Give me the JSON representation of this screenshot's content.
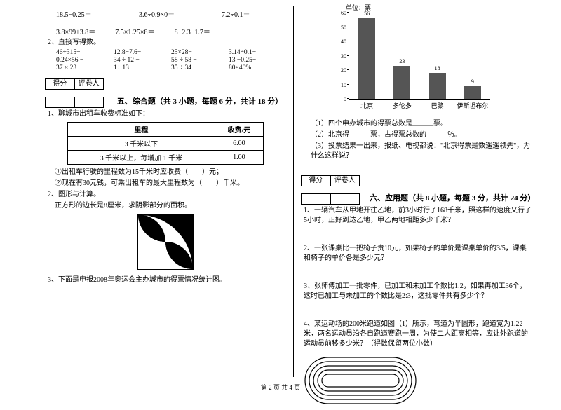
{
  "arithmetic_block1": {
    "r1": [
      "18.5−0.25＝",
      "3.6÷0.9×0＝",
      "7.2÷0.1＝"
    ],
    "r2": [
      "3.8×99+3.8＝",
      "7.5×1.25×8＝",
      "8−2.3−1.7＝"
    ]
  },
  "direct_label": "2、直接写得数。",
  "arithmetic_block2": {
    "r1": [
      "46+315−",
      "12.8−7.6−",
      "25×28−",
      "3.14÷0.1−"
    ],
    "r2": [
      "0.24×56 −",
      "34 ÷ 12 −",
      "58 ÷ 58 −",
      "13 −0.25−"
    ],
    "r3": [
      "37 × 23 −",
      "1÷ 13 −",
      "35 ÷ 34 −",
      "80×40%−"
    ]
  },
  "score_header": {
    "a": "得分",
    "b": "评卷人"
  },
  "section5": {
    "title": "五、综合题（共 3 小题，每题 6 分，共计 18 分）",
    "q1": {
      "stem": "1、聊城市出租车收费标准如下：",
      "table": {
        "headers": [
          "里程",
          "收费/元"
        ],
        "rows": [
          [
            "3 千米以下",
            "6.00"
          ],
          [
            "3 千米以上，每增加 1 千米",
            "1.00"
          ]
        ]
      },
      "sub1": "①出租车行驶的里程数为15千米时应收费（　　）元；",
      "sub2": "②现在有30元钱，可乘出租车的最大里程数为（　　）千米。"
    },
    "q2": {
      "stem": "2、图形与计算。",
      "line": "正方形的边长是8厘米，求阴影部分的面积。"
    },
    "q3": {
      "stem": "3、下面是申报2008年奥运会主办城市的得票情况统计图。"
    }
  },
  "chart": {
    "unit_label": "单位：票",
    "y_max": 60,
    "y_step": 10,
    "background_color": "#ffffff",
    "bar_color": "#555555",
    "font_size": 9,
    "categories": [
      "北京",
      "多伦多",
      "巴黎",
      "伊斯坦布尔"
    ],
    "values": [
      56,
      23,
      18,
      9
    ]
  },
  "chart_questions": {
    "a": "（1）四个申办城市的得票总数是＿＿＿票。",
    "b": "（2）北京得＿＿＿票，占得票总数的＿＿＿％。",
    "c": "（3）投票结果一出来，报纸、电视都说：\"北京得票是数遥遥领先\"，为什么这样说？"
  },
  "section6": {
    "title": "六、应用题（共 8 小题，每题 3 分，共计 24 分）",
    "q1": "1、一辆汽车从甲地开往乙地，前3小时行了168千米，照这样的速度又行了5小时，正好到达乙地，甲乙两地相距多少千米？",
    "q2": "2、一张课桌比一把椅子贵10元，如果椅子的单价是课桌单价的3/5，课桌和椅子的单价各是多少元？",
    "q3": "3、张师傅加工一批零件，已加工和未加工个数比1:2，如果再加工36个，这时已加工与未加工的个数比是2:3，这批零件共有多少个？",
    "q4": "4、某运动场的200米跑道如图（1）所示，弯道为半圆形，跑道宽为1.22米，两名运动员沿各自跑道赛跑一周，为使二人距离相等，应让外跑道的运动员前移多少米？（得数保留两位小数）"
  },
  "footer": "第 2 页 共 4 页"
}
